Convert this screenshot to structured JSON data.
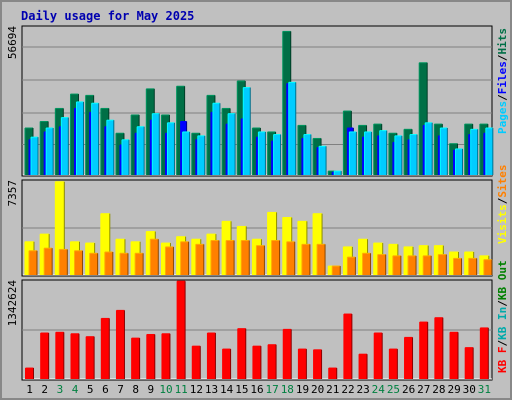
{
  "title": "Daily usage for May 2025",
  "colors": {
    "pages": "#00ccff",
    "files": "#0000ff",
    "hits": "#006f46",
    "visits": "#ffff00",
    "sites": "#ff8000",
    "kbin": "#00aaaa",
    "kbout": "#008000",
    "kbf": "#ff0000",
    "weekend_day": "#008040"
  },
  "right_labels": {
    "top": [
      "Pages",
      "Files",
      "Hits"
    ],
    "middle": [
      "Visits",
      "Sites"
    ],
    "bottom": [
      "KB F",
      "KB In",
      "KB Out"
    ]
  },
  "chart_data": [
    {
      "type": "bar",
      "panel": "top",
      "y_max_label": "56694",
      "y_max": 56694,
      "categories": [
        "1",
        "2",
        "3",
        "4",
        "5",
        "6",
        "7",
        "8",
        "9",
        "10",
        "11",
        "12",
        "13",
        "14",
        "15",
        "16",
        "17",
        "18",
        "19",
        "20",
        "21",
        "22",
        "23",
        "24",
        "25",
        "26",
        "27",
        "28",
        "29",
        "30",
        "31"
      ],
      "weekend_days": [
        "3",
        "4",
        "10",
        "11",
        "17",
        "18",
        "24",
        "25",
        "31"
      ],
      "series": [
        {
          "name": "Hits",
          "values": [
            18000,
            20500,
            25500,
            31000,
            30500,
            25500,
            16000,
            23000,
            33000,
            23000,
            34000,
            16000,
            30500,
            25500,
            36000,
            18000,
            16500,
            55000,
            19000,
            14000,
            1500,
            24500,
            19000,
            19500,
            16000,
            17500,
            43000,
            19500,
            12000,
            19500,
            19500
          ]
        },
        {
          "name": "Files",
          "values": [
            13500,
            16500,
            18500,
            25500,
            24000,
            18500,
            11500,
            16000,
            21000,
            16000,
            20500,
            13500,
            24000,
            19500,
            21500,
            14500,
            13000,
            35000,
            14000,
            10500,
            1100,
            18000,
            14500,
            15000,
            12500,
            13500,
            19000,
            15000,
            9500,
            15500,
            16000
          ]
        },
        {
          "name": "Pages",
          "values": [
            14500,
            18000,
            22000,
            28000,
            27500,
            21000,
            13500,
            18500,
            23500,
            20000,
            16500,
            15000,
            27500,
            23500,
            33500,
            16500,
            15500,
            35500,
            15500,
            11000,
            1500,
            16500,
            16500,
            17000,
            15000,
            15500,
            20000,
            18000,
            10000,
            17500,
            18000
          ]
        }
      ]
    },
    {
      "type": "bar",
      "panel": "middle",
      "y_max_label": "7357",
      "y_max": 7357,
      "categories": [
        "1",
        "2",
        "3",
        "4",
        "5",
        "6",
        "7",
        "8",
        "9",
        "10",
        "11",
        "12",
        "13",
        "14",
        "15",
        "16",
        "17",
        "18",
        "19",
        "20",
        "21",
        "22",
        "23",
        "24",
        "25",
        "26",
        "27",
        "28",
        "29",
        "30",
        "31"
      ],
      "series": [
        {
          "name": "Visits",
          "values": [
            2600,
            3200,
            7300,
            2600,
            2500,
            4800,
            2800,
            2600,
            3400,
            2500,
            3000,
            2800,
            3200,
            4200,
            3800,
            2800,
            4900,
            4500,
            4200,
            4800,
            700,
            2200,
            2800,
            2500,
            2400,
            2200,
            2300,
            2300,
            1800,
            1800,
            1500
          ]
        },
        {
          "name": "Sites",
          "values": [
            1900,
            2100,
            2000,
            1900,
            1700,
            1800,
            1700,
            1700,
            2800,
            2200,
            2600,
            2400,
            2700,
            2700,
            2700,
            2300,
            2700,
            2600,
            2400,
            2400,
            700,
            1400,
            1700,
            1600,
            1500,
            1500,
            1500,
            1600,
            1300,
            1300,
            1200
          ]
        }
      ]
    },
    {
      "type": "bar",
      "panel": "bottom",
      "y_max_label": "1342624",
      "y_max": 1342624,
      "categories": [
        "1",
        "2",
        "3",
        "4",
        "5",
        "6",
        "7",
        "8",
        "9",
        "10",
        "11",
        "12",
        "13",
        "14",
        "15",
        "16",
        "17",
        "18",
        "19",
        "20",
        "21",
        "22",
        "23",
        "24",
        "25",
        "26",
        "27",
        "28",
        "29",
        "30",
        "31"
      ],
      "series": [
        {
          "name": "KB F",
          "values": [
            150000,
            630000,
            640000,
            620000,
            580000,
            830000,
            940000,
            560000,
            610000,
            620000,
            1340000,
            450000,
            630000,
            410000,
            690000,
            450000,
            470000,
            680000,
            410000,
            400000,
            150000,
            890000,
            340000,
            630000,
            410000,
            570000,
            780000,
            840000,
            640000,
            430000,
            700000
          ]
        }
      ]
    }
  ]
}
